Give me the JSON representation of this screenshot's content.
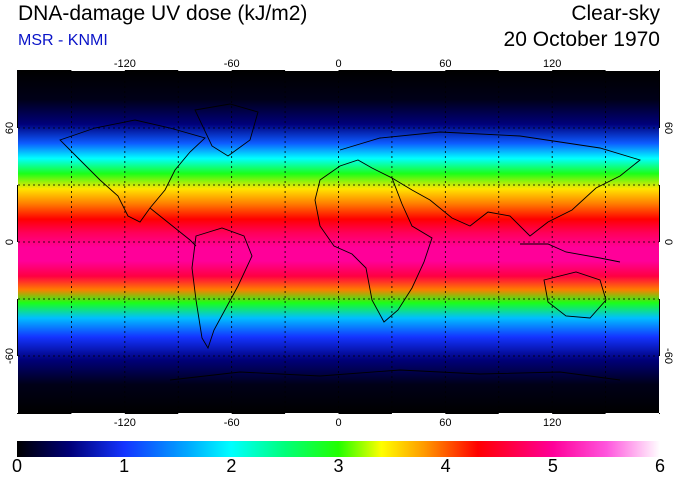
{
  "header": {
    "title": "DNA-damage UV dose (kJ/m2)",
    "subtitle": "MSR - KNMI",
    "sky_condition": "Clear-sky",
    "date": "20 October 1970"
  },
  "map": {
    "lon_ticks": [
      "-120",
      "-60",
      "0",
      "60",
      "120"
    ],
    "lat_ticks": [
      "60",
      "0",
      "-60"
    ],
    "lon_range": [
      -180,
      180
    ],
    "lat_range": [
      -90,
      90
    ],
    "gridlines": "dashed every 30 degrees",
    "field": "DNA-damage UV dose",
    "band_profile": [
      {
        "lat": 90,
        "dose": 0.0
      },
      {
        "lat": 75,
        "dose": 0.1
      },
      {
        "lat": 62,
        "dose": 0.5
      },
      {
        "lat": 52,
        "dose": 1.2
      },
      {
        "lat": 44,
        "dose": 2.0
      },
      {
        "lat": 36,
        "dose": 2.9
      },
      {
        "lat": 28,
        "dose": 3.5
      },
      {
        "lat": 20,
        "dose": 3.9
      },
      {
        "lat": 12,
        "dose": 4.3
      },
      {
        "lat": 5,
        "dose": 4.7
      },
      {
        "lat": -3,
        "dose": 5.0
      },
      {
        "lat": -10,
        "dose": 5.0
      },
      {
        "lat": -18,
        "dose": 4.6
      },
      {
        "lat": -25,
        "dose": 3.9
      },
      {
        "lat": -32,
        "dose": 2.9
      },
      {
        "lat": -40,
        "dose": 1.7
      },
      {
        "lat": -50,
        "dose": 1.0
      },
      {
        "lat": -62,
        "dose": 0.5
      },
      {
        "lat": -75,
        "dose": 0.1
      },
      {
        "lat": -90,
        "dose": 0.0
      }
    ]
  },
  "colorbar": {
    "labels": [
      "0",
      "1",
      "2",
      "3",
      "4",
      "5",
      "6"
    ],
    "min": 0,
    "max": 6,
    "stops": [
      {
        "v": 0.0,
        "c": "#000000"
      },
      {
        "v": 0.5,
        "c": "#00007a"
      },
      {
        "v": 1.0,
        "c": "#1434ff"
      },
      {
        "v": 1.6,
        "c": "#00aaff"
      },
      {
        "v": 2.0,
        "c": "#00ffff"
      },
      {
        "v": 2.5,
        "c": "#00ff7a"
      },
      {
        "v": 3.0,
        "c": "#22ff00"
      },
      {
        "v": 3.4,
        "c": "#ffff00"
      },
      {
        "v": 3.8,
        "c": "#ff9a00"
      },
      {
        "v": 4.3,
        "c": "#ff0000"
      },
      {
        "v": 5.0,
        "c": "#ff0099"
      },
      {
        "v": 5.5,
        "c": "#ff55dd"
      },
      {
        "v": 6.0,
        "c": "#ffffff"
      }
    ]
  }
}
